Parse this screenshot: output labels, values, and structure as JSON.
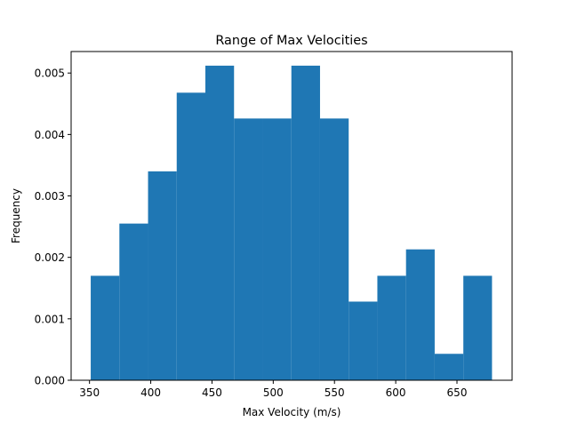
{
  "chart_data": {
    "type": "bar",
    "title": "Range of Max Velocities",
    "xlabel": "Max Velocity (m/s)",
    "ylabel": "Frequency",
    "xlim": [
      335,
      695
    ],
    "ylim": [
      0,
      0.00535
    ],
    "xticks": [
      350,
      400,
      450,
      500,
      550,
      600,
      650
    ],
    "xtick_labels": [
      "350",
      "400",
      "450",
      "500",
      "550",
      "600",
      "650"
    ],
    "yticks": [
      0,
      0.001,
      0.002,
      0.003,
      0.004,
      0.005
    ],
    "ytick_labels": [
      "0.000",
      "0.001",
      "0.002",
      "0.003",
      "0.004",
      "0.005"
    ],
    "bin_edges": [
      351,
      374.4,
      397.8,
      421.2,
      444.6,
      468,
      491.4,
      514.8,
      538.2,
      561.6,
      585,
      608.4,
      631.8,
      655.2,
      678.6
    ],
    "values": [
      0.0017,
      0.00255,
      0.0034,
      0.00468,
      0.00512,
      0.00426,
      0.00426,
      0.00512,
      0.00426,
      0.00128,
      0.0017,
      0.00213,
      0.00043,
      0.0017
    ],
    "bar_color": "#1f77b4",
    "grid": false,
    "legend": "none"
  }
}
